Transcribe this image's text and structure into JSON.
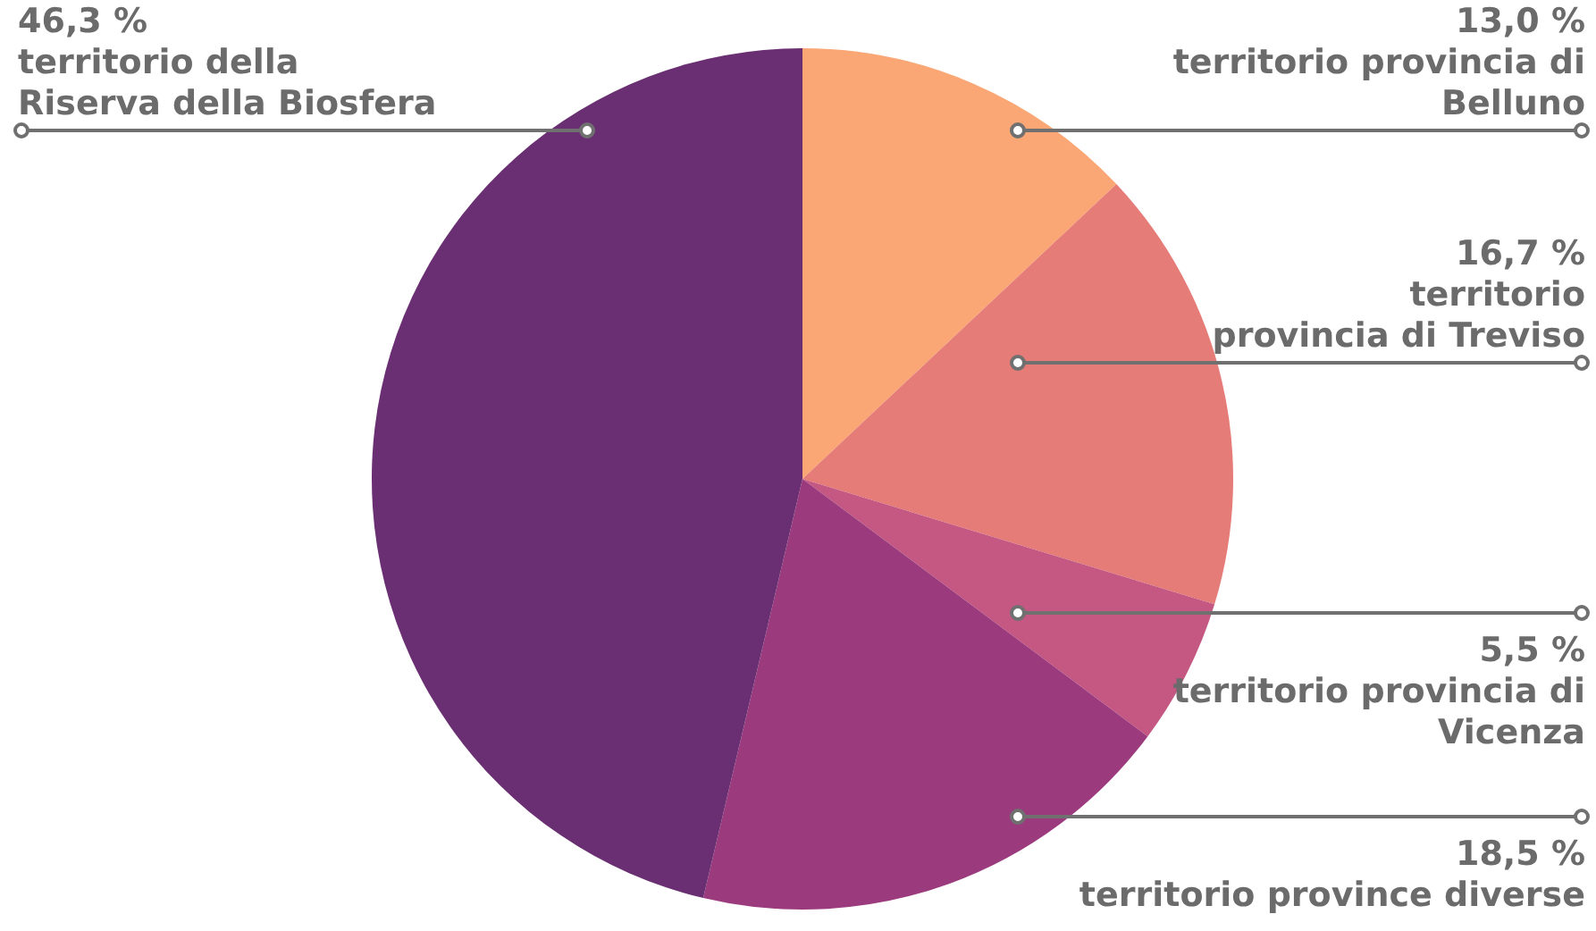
{
  "chart_data": {
    "type": "pie",
    "categories": [
      "territorio provincia di\nBelluno",
      "territorio\nprovincia di Treviso",
      "territorio provincia di\nVicenza",
      "territorio province diverse",
      "territorio della\nRiserva della Biosfera"
    ],
    "values": [
      13.0,
      16.7,
      5.5,
      18.5,
      46.3
    ],
    "value_labels": [
      "13,0 %",
      "16,7 %",
      "5,5 %",
      "18,5 %",
      "46,3 %"
    ],
    "colors": [
      "#faa775",
      "#e57c78",
      "#c45883",
      "#9b3a7d",
      "#6a2f72"
    ],
    "legend": false
  }
}
